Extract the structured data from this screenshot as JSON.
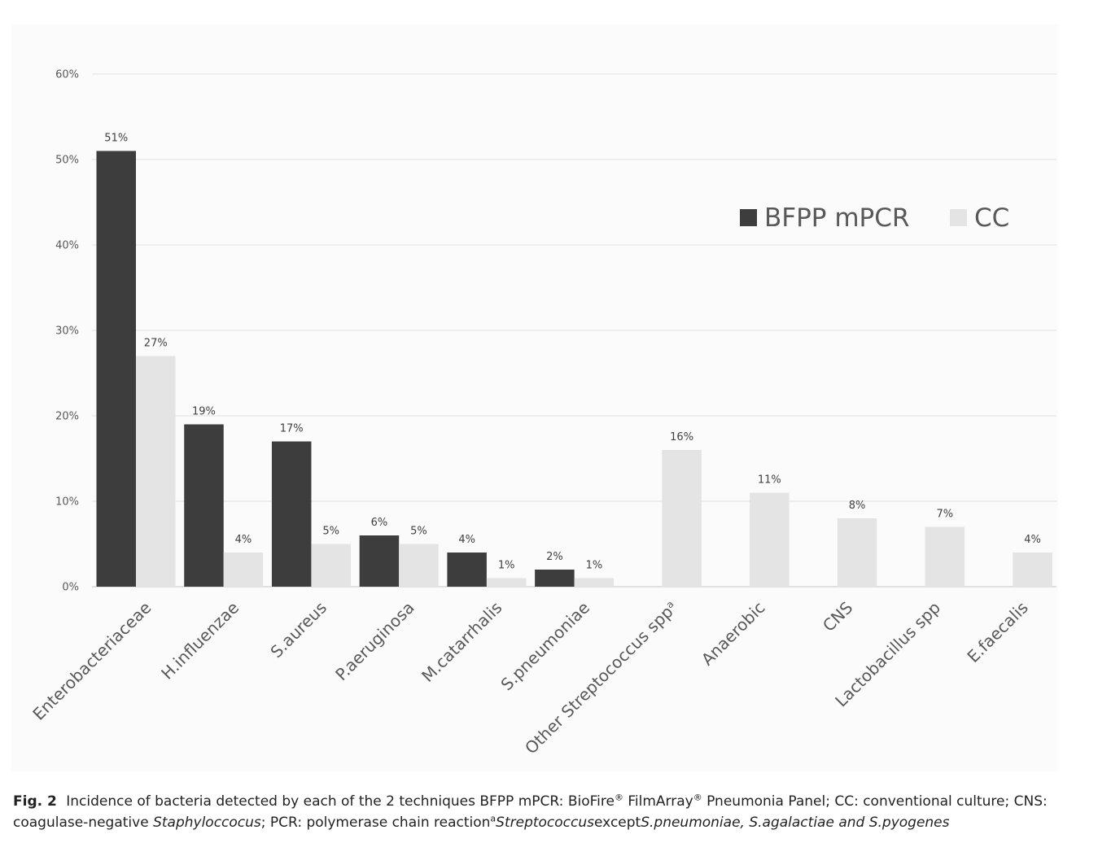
{
  "chart_data": {
    "type": "bar",
    "categories": [
      "Enterobacteriaceae",
      "H.influenzae",
      "S.aureus",
      "P.aeruginosa",
      "M.catarrhalis",
      "S.pneumoniae",
      "Other Streptococcus spp",
      "Anaerobic",
      "CNS",
      "Lactobacillus spp",
      "E.faecalis"
    ],
    "category_superscripts": [
      "",
      "",
      "",
      "",
      "",
      "",
      "a",
      "",
      "",
      "",
      ""
    ],
    "series": [
      {
        "name": "BFPP mPCR",
        "color": "#3d3d3d",
        "values": [
          51,
          19,
          17,
          6,
          4,
          2,
          null,
          null,
          null,
          null,
          null
        ],
        "labels": [
          "51%",
          "19%",
          "17%",
          "6%",
          "4%",
          "2%",
          "",
          "",
          "",
          "",
          ""
        ]
      },
      {
        "name": "CC",
        "color": "#e4e4e4",
        "values": [
          27,
          4,
          5,
          5,
          1,
          1,
          16,
          11,
          8,
          7,
          4
        ],
        "labels": [
          "27%",
          "4%",
          "5%",
          "5%",
          "1%",
          "1%",
          "16%",
          "11%",
          "8%",
          "7%",
          "4%"
        ]
      }
    ],
    "ylim": [
      0,
      60
    ],
    "yticks": [
      0,
      10,
      20,
      30,
      40,
      50,
      60
    ],
    "ytick_labels": [
      "0%",
      "10%",
      "20%",
      "30%",
      "40%",
      "50%",
      "60%"
    ],
    "grid": true,
    "legend_position": "top-right"
  },
  "caption": {
    "label": "Fig. 2",
    "text_1": "Incidence of bacteria detected by each of the 2 techniques BFPP mPCR: BioFire",
    "reg_mark": "®",
    "text_2": " FilmArray",
    "text_3": " Pneumonia Panel; CC: conventional culture; CNS: coagulase-negative ",
    "italic_1": "Staphyloccocus",
    "text_4": "; PCR: polymerase chain reaction",
    "sup": "a",
    "italic_2": "Streptococcus",
    "text_5": "except",
    "italic_3": "S.pneumoniae, S.agalactiae and S.pyogenes"
  }
}
